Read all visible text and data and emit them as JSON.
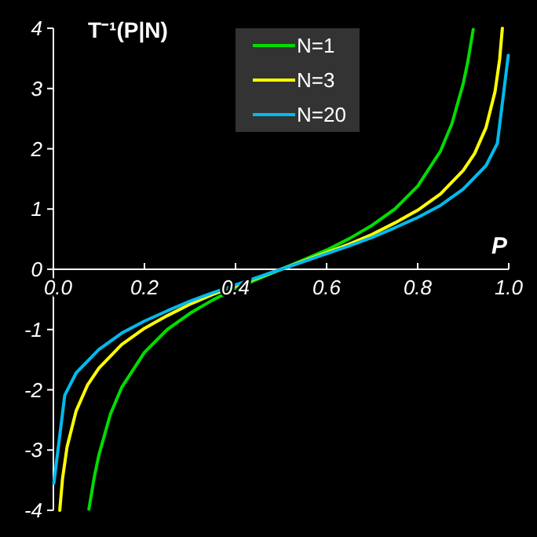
{
  "chart_data": {
    "type": "line",
    "ylabel": "T⁻¹(P|N)",
    "xlabel": "P",
    "xlim": [
      0,
      1
    ],
    "xticks": [
      {
        "value": 0,
        "label": "0.0"
      },
      {
        "value": 0.2,
        "label": "0.2"
      },
      {
        "value": 0.4,
        "label": "0.4"
      },
      {
        "value": 0.6,
        "label": "0.6"
      },
      {
        "value": 0.8,
        "label": "0.8"
      },
      {
        "value": 1,
        "label": "1.0"
      }
    ],
    "ylim": [
      -4,
      4
    ],
    "yticks": [
      -4,
      -3,
      -2,
      -1,
      0,
      1,
      2,
      3,
      4
    ],
    "legend": "top",
    "grid": false,
    "marker": "none",
    "line_style": "solid",
    "series": [
      {
        "name": "N=1",
        "color": "#00dd00",
        "x": [
          0.078,
          0.09,
          0.1,
          0.125,
          0.15,
          0.2,
          0.25,
          0.3,
          0.35,
          0.4,
          0.45,
          0.5,
          0.55,
          0.6,
          0.65,
          0.7,
          0.75,
          0.8,
          0.85,
          0.875,
          0.9,
          0.91,
          0.922
        ],
        "values": [
          -3.98,
          -3.44,
          -3.08,
          -2.41,
          -1.96,
          -1.38,
          -1,
          -0.73,
          -0.51,
          -0.32,
          -0.16,
          0,
          0.16,
          0.32,
          0.51,
          0.73,
          1,
          1.38,
          1.96,
          2.41,
          3.08,
          3.44,
          3.98
        ]
      },
      {
        "name": "N=3",
        "color": "#ffff00",
        "x": [
          0.014,
          0.02,
          0.03,
          0.05,
          0.075,
          0.1,
          0.15,
          0.2,
          0.25,
          0.3,
          0.35,
          0.4,
          0.45,
          0.5,
          0.55,
          0.6,
          0.65,
          0.7,
          0.75,
          0.8,
          0.85,
          0.9,
          0.925,
          0.95,
          0.97,
          0.98,
          0.986
        ],
        "values": [
          -4,
          -3.48,
          -2.95,
          -2.35,
          -1.92,
          -1.64,
          -1.25,
          -0.98,
          -0.77,
          -0.58,
          -0.42,
          -0.28,
          -0.14,
          0,
          0.14,
          0.28,
          0.42,
          0.58,
          0.77,
          0.98,
          1.25,
          1.64,
          1.92,
          2.35,
          2.95,
          3.48,
          4
        ]
      },
      {
        "name": "N=20",
        "color": "#00bbee",
        "x": [
          0.001,
          0.025,
          0.05,
          0.1,
          0.15,
          0.2,
          0.25,
          0.3,
          0.35,
          0.4,
          0.45,
          0.5,
          0.55,
          0.6,
          0.65,
          0.7,
          0.75,
          0.8,
          0.85,
          0.9,
          0.95,
          0.975,
          0.999
        ],
        "values": [
          -3.55,
          -2.09,
          -1.72,
          -1.33,
          -1.06,
          -0.86,
          -0.69,
          -0.53,
          -0.39,
          -0.26,
          -0.13,
          0,
          0.13,
          0.26,
          0.39,
          0.53,
          0.69,
          0.86,
          1.06,
          1.33,
          1.72,
          2.09,
          3.55
        ]
      }
    ]
  }
}
